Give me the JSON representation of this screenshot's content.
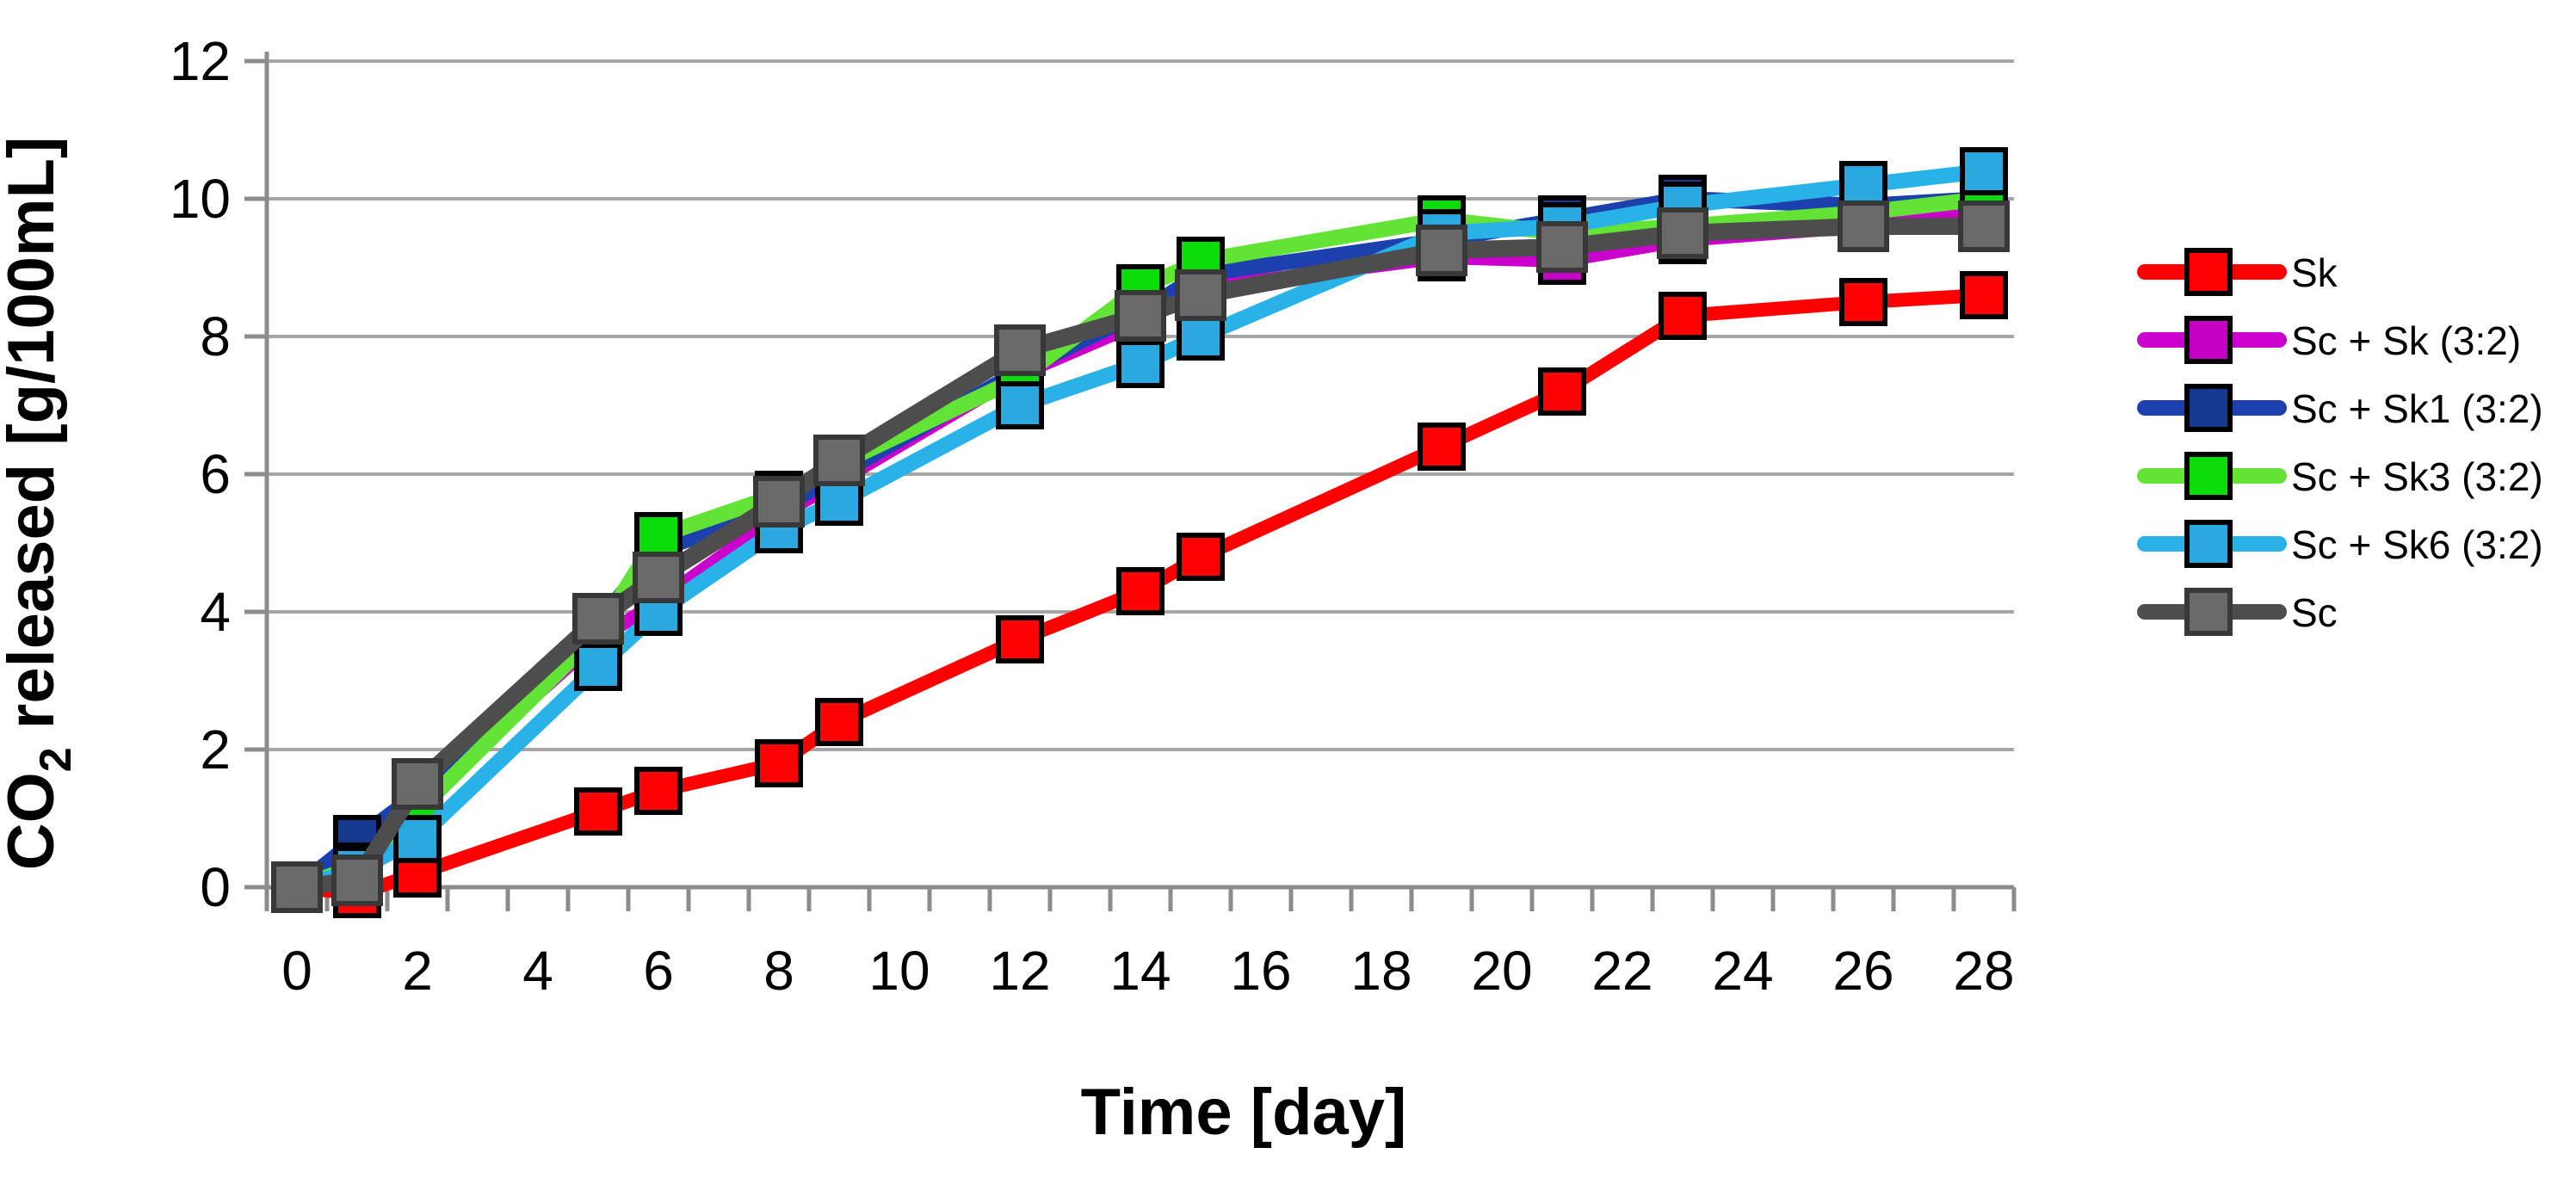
{
  "page": {
    "background": "#FFFFFF"
  },
  "chart_data": {
    "type": "line",
    "title": "",
    "xlabel": "Time [day]",
    "ylabel": "CO₂ released [g/100mL]",
    "xlim": [
      -0.5,
      28.5
    ],
    "ylim": [
      0,
      12
    ],
    "xticks": [
      0,
      2,
      4,
      6,
      8,
      10,
      12,
      14,
      16,
      18,
      20,
      22,
      24,
      26,
      28
    ],
    "yticks": [
      0,
      2,
      4,
      6,
      8,
      10,
      12
    ],
    "grid": "horizontal",
    "legend_position": "right",
    "x": [
      0,
      1,
      2,
      5,
      6,
      8,
      9,
      12,
      14,
      15,
      19,
      21,
      23,
      26,
      28
    ],
    "series": [
      {
        "name": "Sk",
        "line_color": "#FF0000",
        "marker_color": "#FF0000",
        "marker_edge": "#000000",
        "line_width": 16,
        "values": [
          0,
          -0.1,
          0.2,
          1.1,
          1.4,
          1.8,
          2.4,
          3.6,
          4.3,
          4.8,
          6.4,
          7.2,
          8.3,
          8.5,
          8.6
        ]
      },
      {
        "name": "Sc + Sk (3:2)",
        "line_color": "#CC00CC",
        "marker_color": "#C400C4",
        "marker_edge": "#000000",
        "line_width": 16,
        "values": [
          0,
          0.4,
          1.25,
          3.6,
          4.15,
          5.4,
          5.9,
          7.45,
          8.2,
          8.7,
          9.15,
          9.1,
          9.4,
          9.6,
          9.8
        ]
      },
      {
        "name": "Sc + Sk1 (3:2)",
        "line_color": "#1C41AE",
        "marker_color": "#16398F",
        "marker_edge": "#000000",
        "line_width": 18,
        "values": [
          0,
          0.7,
          1.35,
          3.85,
          4.9,
          5.5,
          6.0,
          7.5,
          8.35,
          8.9,
          9.4,
          9.7,
          10.0,
          9.9,
          10.0
        ]
      },
      {
        "name": "Sc + Sk3 (3:2)",
        "line_color": "#63E336",
        "marker_color": "#0BDD0B",
        "marker_edge": "#000000",
        "line_width": 18,
        "values": [
          0,
          0.3,
          1.1,
          3.7,
          5.1,
          5.7,
          6.15,
          7.4,
          8.7,
          9.1,
          9.7,
          9.5,
          9.6,
          9.8,
          10.0
        ]
      },
      {
        "name": "Sc + Sk6 (3:2)",
        "line_color": "#29B2E8",
        "marker_color": "#29A9DF",
        "marker_edge": "#000000",
        "line_width": 18,
        "values": [
          0,
          0.25,
          0.7,
          3.2,
          4.0,
          5.2,
          5.6,
          7.0,
          7.6,
          8.0,
          9.5,
          9.6,
          9.9,
          10.2,
          10.4
        ]
      },
      {
        "name": "Sc",
        "line_color": "#4D4D4D",
        "marker_color": "#696969",
        "marker_edge": "#383838",
        "line_width": 20,
        "values": [
          0,
          0.1,
          1.5,
          3.9,
          4.5,
          5.6,
          6.2,
          7.8,
          8.3,
          8.6,
          9.25,
          9.3,
          9.5,
          9.6,
          9.6
        ]
      }
    ],
    "axis_color": "#8C8C8C",
    "grid_color": "#A6A6A6",
    "text_color": "#000000"
  }
}
